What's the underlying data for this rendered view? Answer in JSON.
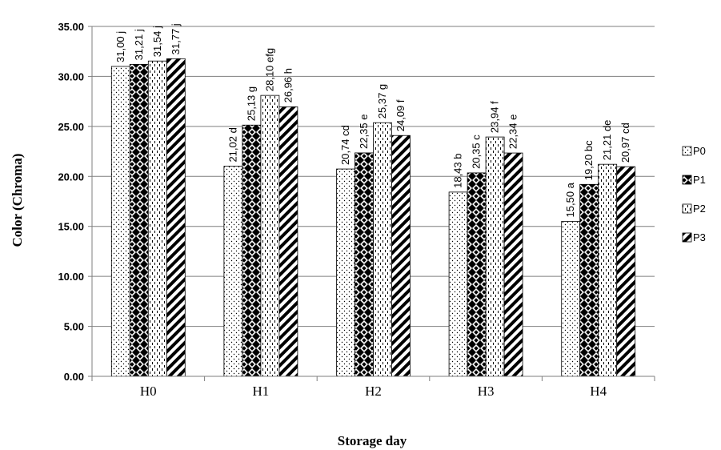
{
  "chart_data": {
    "type": "bar",
    "title": "",
    "xlabel": "Storage day",
    "ylabel": "Color (Chroma)",
    "ylim": [
      0,
      35
    ],
    "yticks": [
      "0.00",
      "5.00",
      "10.00",
      "15.00",
      "20.00",
      "25.00",
      "30.00",
      "35.00"
    ],
    "categories": [
      "H0",
      "H1",
      "H2",
      "H3",
      "H4"
    ],
    "grid": "horizontal",
    "legend_position": "right",
    "series": [
      {
        "name": "P0",
        "pattern": "dots",
        "values": [
          31.0,
          21.02,
          20.74,
          18.43,
          15.5
        ],
        "labels": [
          "31,00 j",
          "21,02 d",
          "20,74 cd",
          "18,43 b",
          "15,50 a"
        ]
      },
      {
        "name": "P1",
        "pattern": "diamonds",
        "values": [
          31.21,
          25.13,
          22.35,
          20.35,
          19.2
        ],
        "labels": [
          "31,21 j",
          "25,13 g",
          "22,35 e",
          "20,35 c",
          "19,20 bc"
        ]
      },
      {
        "name": "P2",
        "pattern": "dashes",
        "values": [
          31.54,
          28.1,
          25.37,
          23.94,
          21.21
        ],
        "labels": [
          "31,54 j",
          "28,10 efg",
          "25,37 g",
          "23,94 f",
          "21,21 de"
        ]
      },
      {
        "name": "P3",
        "pattern": "diagonal",
        "values": [
          31.77,
          26.96,
          24.09,
          22.34,
          20.97
        ],
        "labels": [
          "31,77 j",
          "26,96 h",
          "24,09 f",
          "22,34 e",
          "20,97 cd"
        ]
      }
    ]
  }
}
